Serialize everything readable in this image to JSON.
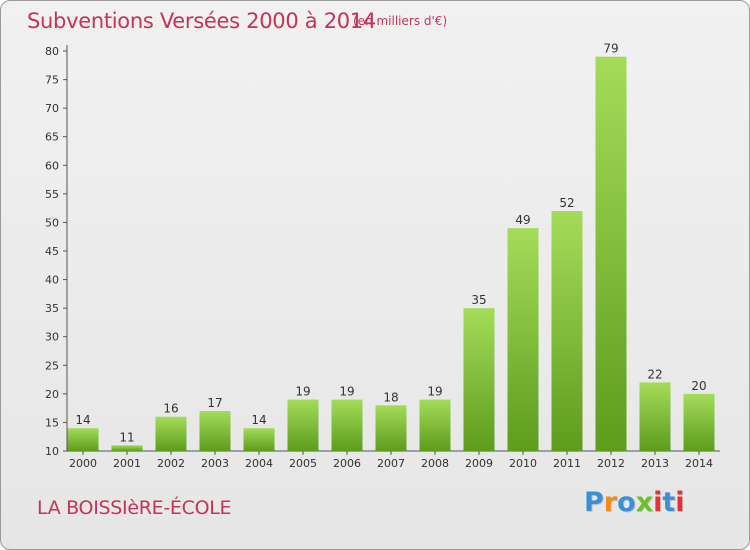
{
  "chart_data": {
    "type": "bar",
    "title": "Subventions Versées 2000 à 2014",
    "subtitle": "(en milliers d'€)",
    "categories": [
      "2000",
      "2001",
      "2002",
      "2003",
      "2004",
      "2005",
      "2006",
      "2007",
      "2008",
      "2009",
      "2010",
      "2011",
      "2012",
      "2013",
      "2014"
    ],
    "values": [
      14,
      11,
      16,
      17,
      14,
      19,
      19,
      18,
      19,
      35,
      49,
      52,
      79,
      22,
      20
    ],
    "ylim": [
      10,
      80
    ],
    "yticks": [
      10,
      15,
      20,
      25,
      30,
      35,
      40,
      45,
      50,
      55,
      60,
      65,
      70,
      75,
      80
    ],
    "grid": false,
    "legend": "none",
    "bar_color": "#7cc130",
    "bar_color_light": "#a4dc5a",
    "bar_color_dark": "#5e9c1c"
  },
  "footer": {
    "location": "LA BOISSIèRE-ÉCOLE",
    "brand": "Proxiti"
  },
  "colors": {
    "title": "#c8325a",
    "brand": [
      "#3a8fd6",
      "#f08a1c",
      "#3a8fd6",
      "#6cbf2a",
      "#e2323a",
      "#3a8fd6",
      "#e2323a"
    ]
  }
}
